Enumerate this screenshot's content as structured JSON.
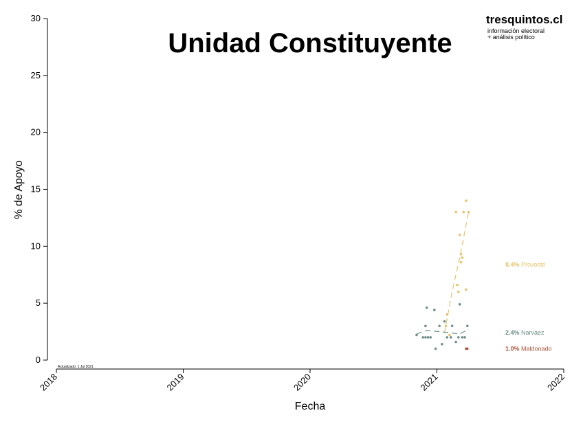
{
  "header": {
    "title": "Unidad Constituyente",
    "brand": "tresquintos.cl",
    "tagline_1": "información electoral",
    "tagline_2": "+ análisis político",
    "updated": "Actualizado: 1 Jul 2021"
  },
  "chart_data": {
    "type": "scatter",
    "xlabel": "Fecha",
    "ylabel": "% de Apoyo",
    "xlim": [
      2018.0,
      2022.0
    ],
    "ylim": [
      0,
      30
    ],
    "x_ticks": [
      "2018",
      "2019",
      "2020",
      "2021",
      "2022"
    ],
    "x_tick_values": [
      2018,
      2019,
      2020,
      2021,
      2022
    ],
    "y_ticks": [
      "0",
      "5",
      "10",
      "15",
      "20",
      "25",
      "30"
    ],
    "y_tick_values": [
      0,
      5,
      10,
      15,
      20,
      25,
      30
    ],
    "grid": false,
    "series": [
      {
        "name": "Provoste",
        "color": "#E6C36A",
        "final_label": "8.4%",
        "points": [
          {
            "x": 2021.07,
            "y": 3.0
          },
          {
            "x": 2021.08,
            "y": 4.0
          },
          {
            "x": 2021.1,
            "y": 2.2
          },
          {
            "x": 2021.15,
            "y": 13.0
          },
          {
            "x": 2021.16,
            "y": 6.6
          },
          {
            "x": 2021.17,
            "y": 6.0
          },
          {
            "x": 2021.18,
            "y": 11.0
          },
          {
            "x": 2021.19,
            "y": 9.3
          },
          {
            "x": 2021.19,
            "y": 8.6
          },
          {
            "x": 2021.2,
            "y": 9.0
          },
          {
            "x": 2021.21,
            "y": 13.0
          },
          {
            "x": 2021.23,
            "y": 14.0
          },
          {
            "x": 2021.23,
            "y": 6.2
          },
          {
            "x": 2021.25,
            "y": 13.0
          }
        ],
        "trend": [
          {
            "x": 2021.06,
            "y": 2.4
          },
          {
            "x": 2021.12,
            "y": 6.0
          },
          {
            "x": 2021.18,
            "y": 9.0
          },
          {
            "x": 2021.25,
            "y": 13.0
          }
        ]
      },
      {
        "name": "Narváez",
        "color": "#6E8F8A",
        "final_label": "2.4%",
        "points": [
          {
            "x": 2020.84,
            "y": 2.2
          },
          {
            "x": 2020.89,
            "y": 2.0
          },
          {
            "x": 2020.91,
            "y": 2.0
          },
          {
            "x": 2020.91,
            "y": 3.0
          },
          {
            "x": 2020.92,
            "y": 4.6
          },
          {
            "x": 2020.93,
            "y": 2.0
          },
          {
            "x": 2020.95,
            "y": 2.0
          },
          {
            "x": 2020.98,
            "y": 4.4
          },
          {
            "x": 2020.99,
            "y": 1.0
          },
          {
            "x": 2021.02,
            "y": 3.0
          },
          {
            "x": 2021.04,
            "y": 1.4
          },
          {
            "x": 2021.06,
            "y": 3.4
          },
          {
            "x": 2021.08,
            "y": 2.0
          },
          {
            "x": 2021.11,
            "y": 2.0
          },
          {
            "x": 2021.12,
            "y": 3.0
          },
          {
            "x": 2021.15,
            "y": 1.6
          },
          {
            "x": 2021.17,
            "y": 2.0
          },
          {
            "x": 2021.18,
            "y": 4.9
          },
          {
            "x": 2021.2,
            "y": 2.0
          },
          {
            "x": 2021.22,
            "y": 2.0
          },
          {
            "x": 2021.24,
            "y": 3.0
          }
        ],
        "trend": [
          {
            "x": 2020.84,
            "y": 2.3
          },
          {
            "x": 2020.92,
            "y": 2.6
          },
          {
            "x": 2021.02,
            "y": 2.5
          },
          {
            "x": 2021.1,
            "y": 2.4
          },
          {
            "x": 2021.18,
            "y": 2.3
          },
          {
            "x": 2021.25,
            "y": 2.7
          }
        ]
      },
      {
        "name": "Maldonado",
        "color": "#B0533A",
        "final_label": "1.0%",
        "points": [
          {
            "x": 2021.23,
            "y": 1.0
          },
          {
            "x": 2021.24,
            "y": 1.0
          }
        ],
        "trend": []
      }
    ]
  }
}
